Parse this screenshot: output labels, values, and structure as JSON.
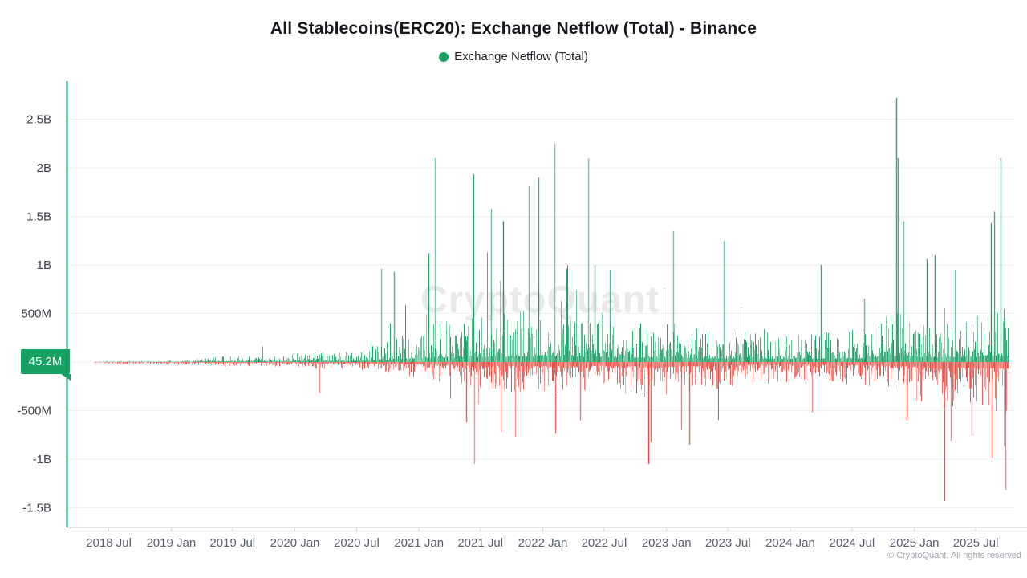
{
  "header": {
    "title": "All Stablecoins(ERC20): Exchange Netflow (Total) - Binance",
    "legend": {
      "label": "Exchange Netflow (Total)"
    }
  },
  "watermark": "CryptoQuant",
  "footer": {
    "copyright": "© CryptoQuant. All rights reserved"
  },
  "chart_data": {
    "type": "bar",
    "title": "All Stablecoins(ERC20): Exchange Netflow (Total) - Binance",
    "series_name": "Exchange Netflow (Total)",
    "unit": "USD",
    "legend_position": "top-center",
    "grid": true,
    "colors": {
      "positive": "#16a163",
      "negative": "#f0483e",
      "axis_line": "#16a163",
      "baseline": "#e4e4e9",
      "gridline": "#f1f1f4",
      "tick": "#d7d7de",
      "y_label": "#3d4049",
      "x_label": "#5a5e6e",
      "badge_bg": "#16a163",
      "badge_text": "#ffffff"
    },
    "y_axis": {
      "range_millions": [
        -1700,
        2890
      ],
      "ticks": [
        {
          "label": "2.5B",
          "value_millions": 2500
        },
        {
          "label": "2B",
          "value_millions": 2000
        },
        {
          "label": "1.5B",
          "value_millions": 1500
        },
        {
          "label": "1B",
          "value_millions": 1000
        },
        {
          "label": "500M",
          "value_millions": 500
        },
        {
          "label": "-500M",
          "value_millions": -500
        },
        {
          "label": "-1B",
          "value_millions": -1000
        },
        {
          "label": "-1.5B",
          "value_millions": -1500
        }
      ],
      "current_value": {
        "label": "45.2M",
        "value_millions": 45.2
      }
    },
    "x_axis": {
      "start": "2018-03-01",
      "end": "2025-10-20",
      "data_start": "2018-05-20",
      "data_end": "2025-10-05",
      "ticks": [
        {
          "label": "2018 Jul",
          "date": "2018-07-01"
        },
        {
          "label": "2019 Jan",
          "date": "2019-01-01"
        },
        {
          "label": "2019 Jul",
          "date": "2019-07-01"
        },
        {
          "label": "2020 Jan",
          "date": "2020-01-01"
        },
        {
          "label": "2020 Jul",
          "date": "2020-07-01"
        },
        {
          "label": "2021 Jan",
          "date": "2021-01-01"
        },
        {
          "label": "2021 Jul",
          "date": "2021-07-01"
        },
        {
          "label": "2022 Jan",
          "date": "2022-01-01"
        },
        {
          "label": "2022 Jul",
          "date": "2022-07-01"
        },
        {
          "label": "2023 Jan",
          "date": "2023-01-01"
        },
        {
          "label": "2023 Jul",
          "date": "2023-07-01"
        },
        {
          "label": "2024 Jan",
          "date": "2024-01-01"
        },
        {
          "label": "2024 Jul",
          "date": "2024-07-01"
        },
        {
          "label": "2025 Jan",
          "date": "2025-01-01"
        },
        {
          "label": "2025 Jul",
          "date": "2025-07-01"
        }
      ]
    },
    "envelope_millions": [
      [
        "2018-05-20",
        5,
        14
      ],
      [
        "2018-11-01",
        8,
        20
      ],
      [
        "2019-03-01",
        18,
        26
      ],
      [
        "2019-06-15",
        55,
        38
      ],
      [
        "2019-09-01",
        45,
        34
      ],
      [
        "2020-01-01",
        75,
        48
      ],
      [
        "2020-04-01",
        85,
        60
      ],
      [
        "2020-08-01",
        120,
        70
      ],
      [
        "2020-11-01",
        200,
        100
      ],
      [
        "2021-02-01",
        300,
        160
      ],
      [
        "2021-07-01",
        380,
        230
      ],
      [
        "2022-01-01",
        430,
        260
      ],
      [
        "2022-07-01",
        340,
        230
      ],
      [
        "2022-11-15",
        330,
        300
      ],
      [
        "2023-03-01",
        300,
        260
      ],
      [
        "2023-08-01",
        250,
        190
      ],
      [
        "2024-02-01",
        230,
        170
      ],
      [
        "2024-08-01",
        270,
        190
      ],
      [
        "2024-11-15",
        430,
        270
      ],
      [
        "2025-03-15",
        330,
        390
      ],
      [
        "2025-07-01",
        380,
        360
      ],
      [
        "2025-10-05",
        430,
        430
      ]
    ],
    "spikes_millions": {
      "positive": [
        [
          "2020-09-12",
          960
        ],
        [
          "2020-10-18",
          930
        ],
        [
          "2021-01-28",
          1120
        ],
        [
          "2021-02-17",
          2100
        ],
        [
          "2021-06-10",
          1930
        ],
        [
          "2021-08-02",
          1580
        ],
        [
          "2021-09-06",
          1450
        ],
        [
          "2021-11-20",
          1810
        ],
        [
          "2021-12-18",
          1900
        ],
        [
          "2022-02-05",
          2250
        ],
        [
          "2022-05-14",
          2100
        ],
        [
          "2022-06-03",
          1000
        ],
        [
          "2022-07-18",
          950
        ],
        [
          "2023-01-20",
          1350
        ],
        [
          "2023-06-18",
          1250
        ],
        [
          "2024-04-01",
          1000
        ],
        [
          "2024-08-05",
          650
        ],
        [
          "2024-11-08",
          2720
        ],
        [
          "2024-11-13",
          2100
        ],
        [
          "2024-11-29",
          1450
        ],
        [
          "2025-02-07",
          1060
        ],
        [
          "2025-03-02",
          1100
        ],
        [
          "2025-05-01",
          950
        ],
        [
          "2025-08-14",
          1430
        ],
        [
          "2025-08-24",
          1550
        ],
        [
          "2025-09-13",
          2100
        ]
      ],
      "negative": [
        [
          "2020-03-12",
          320
        ],
        [
          "2021-05-19",
          620
        ],
        [
          "2021-06-12",
          1050
        ],
        [
          "2021-10-11",
          770
        ],
        [
          "2022-02-07",
          740
        ],
        [
          "2022-04-22",
          600
        ],
        [
          "2022-11-09",
          1050
        ],
        [
          "2022-11-16",
          820
        ],
        [
          "2023-02-14",
          700
        ],
        [
          "2023-03-10",
          850
        ],
        [
          "2024-03-05",
          520
        ],
        [
          "2024-12-10",
          600
        ],
        [
          "2025-03-30",
          1430
        ],
        [
          "2025-04-18",
          810
        ],
        [
          "2025-06-20",
          760
        ],
        [
          "2025-08-16",
          990
        ],
        [
          "2025-09-26",
          1320
        ]
      ]
    },
    "seed": 1337
  }
}
